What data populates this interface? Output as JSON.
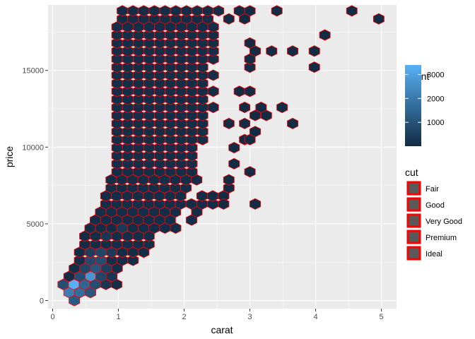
{
  "chart_data": {
    "type": "hexbin",
    "title": "",
    "xlabel": "carat",
    "ylabel": "price",
    "xlim": [
      -0.07,
      5.23
    ],
    "ylim": [
      -527,
      19267
    ],
    "xticks": [
      0,
      1,
      2,
      3,
      4,
      5
    ],
    "yticks": [
      0,
      5000,
      10000,
      15000
    ],
    "xtick_labels": [
      "0",
      "1",
      "2",
      "3",
      "4",
      "5"
    ],
    "ytick_labels": [
      "0",
      "5000",
      "10000",
      "15000"
    ],
    "grid": true,
    "hex": {
      "x_spacing": 0.1625,
      "y_spacing": 524.5,
      "outline_color": "#ff0000",
      "x_origin": 0.165,
      "y_origin": -25
    },
    "fill_scale": {
      "low_color": "#132b43",
      "high_color": "#56b1f7",
      "min": 1,
      "max": 3400
    },
    "rows": [
      {
        "y": 0,
        "x_from": 0.33,
        "x_to": 0.33,
        "counts": {
          "0.33": 1200
        }
      },
      {
        "y": 524,
        "x_from": 0.25,
        "x_to": 0.73,
        "counts": {
          "0.25": 2100,
          "0.41": 1700,
          "0.57": 1100,
          "0.73": 400
        }
      },
      {
        "y": 1049,
        "x_from": 0.16,
        "x_to": 0.98,
        "counts": {
          "0.16": 900,
          "0.33": 3400,
          "0.49": 1500,
          "0.65": 900,
          "0.81": 300
        }
      },
      {
        "y": 1573,
        "x_from": 0.25,
        "x_to": 1.06,
        "counts": {
          "0.41": 900,
          "0.57": 2700,
          "0.73": 700,
          "0.89": 300
        }
      },
      {
        "y": 2098,
        "x_from": 0.33,
        "x_to": 1.14,
        "counts": {
          "0.49": 700,
          "0.65": 1100,
          "0.81": 500
        }
      },
      {
        "y": 2622,
        "x_from": 0.41,
        "x_to": 1.3,
        "counts": {
          "0.57": 800,
          "0.73": 900
        }
      },
      {
        "y": 3147,
        "x_from": 0.41,
        "x_to": 1.46,
        "counts": {
          "0.57": 500,
          "0.73": 700,
          "0.89": 400
        }
      },
      {
        "y": 3671,
        "x_from": 0.49,
        "x_to": 1.54,
        "counts": {
          "0.73": 500,
          "0.89": 400,
          "1.05": 450
        }
      },
      {
        "y": 4196,
        "x_from": 0.49,
        "x_to": 1.62,
        "counts": {
          "0.81": 300,
          "1.06": 400
        }
      },
      {
        "y": 4720,
        "x_from": 0.57,
        "x_to": 2.03,
        "counts": {
          "1.05": 350
        }
      },
      {
        "y": 5245,
        "x_from": 0.65,
        "x_to": 2.27,
        "counts": {}
      },
      {
        "y": 5769,
        "x_from": 0.73,
        "x_to": 2.35,
        "counts": {}
      },
      {
        "y": 6294,
        "x_from": 0.81,
        "x_to": 2.51,
        "counts": {}
      },
      {
        "y": 6818,
        "x_from": 0.81,
        "x_to": 2.6,
        "counts": {}
      },
      {
        "y": 7343,
        "x_from": 0.89,
        "x_to": 2.35,
        "counts": {}
      },
      {
        "y": 7867,
        "x_from": 0.89,
        "x_to": 2.27,
        "counts": {}
      },
      {
        "y": 8392,
        "x_from": 0.98,
        "x_to": 2.19,
        "counts": {}
      },
      {
        "y": 8916,
        "x_from": 0.98,
        "x_to": 2.27,
        "counts": {}
      },
      {
        "y": 9441,
        "x_from": 0.98,
        "x_to": 2.19,
        "counts": {}
      },
      {
        "y": 9965,
        "x_from": 0.98,
        "x_to": 2.27,
        "counts": {}
      },
      {
        "y": 10490,
        "x_from": 0.98,
        "x_to": 2.35,
        "counts": {}
      },
      {
        "y": 11014,
        "x_from": 0.98,
        "x_to": 2.43,
        "counts": {}
      },
      {
        "y": 11539,
        "x_from": 0.98,
        "x_to": 2.35,
        "counts": {}
      },
      {
        "y": 12063,
        "x_from": 0.98,
        "x_to": 2.43,
        "counts": {}
      },
      {
        "y": 12588,
        "x_from": 0.98,
        "x_to": 2.51,
        "counts": {}
      },
      {
        "y": 13112,
        "x_from": 0.98,
        "x_to": 2.43,
        "counts": {}
      },
      {
        "y": 13637,
        "x_from": 0.98,
        "x_to": 2.51,
        "counts": {}
      },
      {
        "y": 14161,
        "x_from": 0.98,
        "x_to": 2.43,
        "counts": {}
      },
      {
        "y": 14686,
        "x_from": 0.98,
        "x_to": 2.51,
        "counts": {}
      },
      {
        "y": 15210,
        "x_from": 0.98,
        "x_to": 2.43,
        "counts": {}
      },
      {
        "y": 15735,
        "x_from": 0.98,
        "x_to": 2.6,
        "counts": {}
      },
      {
        "y": 16259,
        "x_from": 0.98,
        "x_to": 2.51,
        "counts": {}
      },
      {
        "y": 16784,
        "x_from": 0.98,
        "x_to": 2.6,
        "counts": {}
      },
      {
        "y": 17308,
        "x_from": 0.98,
        "x_to": 2.51,
        "counts": {}
      },
      {
        "y": 17833,
        "x_from": 0.98,
        "x_to": 2.6,
        "counts": {}
      },
      {
        "y": 18357,
        "x_from": 1.06,
        "x_to": 2.51,
        "counts": {}
      },
      {
        "y": 18882,
        "x_from": 1.06,
        "x_to": 2.6,
        "counts": {}
      }
    ],
    "holes": [
      [
        2.03,
        5769
      ],
      [
        1.95,
        5245
      ],
      [
        2.11,
        6818
      ],
      [
        2.19,
        7343
      ],
      [
        2.43,
        8916
      ],
      [
        2.35,
        9441
      ],
      [
        2.43,
        9965
      ],
      [
        2.51,
        16259
      ],
      [
        2.51,
        17308
      ],
      [
        2.51,
        15735
      ],
      [
        2.43,
        14686
      ],
      [
        2.35,
        14161
      ],
      [
        2.43,
        13637
      ],
      [
        2.27,
        13112
      ],
      [
        2.35,
        12588
      ],
      [
        2.19,
        11539
      ],
      [
        2.27,
        12063
      ]
    ],
    "extra_hexes": [
      [
        2.6,
        6818
      ],
      [
        2.6,
        6294
      ],
      [
        2.68,
        7343
      ],
      [
        2.68,
        7867
      ],
      [
        2.76,
        8916
      ],
      [
        2.76,
        9965
      ],
      [
        3.0,
        8392
      ],
      [
        3.08,
        6294
      ],
      [
        2.92,
        10490
      ],
      [
        3.0,
        10490
      ],
      [
        3.08,
        11014
      ],
      [
        2.92,
        11539
      ],
      [
        2.68,
        11539
      ],
      [
        3.08,
        12063
      ],
      [
        2.92,
        12588
      ],
      [
        3.25,
        12063
      ],
      [
        3.17,
        12588
      ],
      [
        3.49,
        12588
      ],
      [
        3.65,
        11539
      ],
      [
        2.84,
        13637
      ],
      [
        3.0,
        13637
      ],
      [
        3.0,
        15210
      ],
      [
        3.0,
        15735
      ],
      [
        3.08,
        16259
      ],
      [
        3.0,
        16784
      ],
      [
        2.92,
        18357
      ],
      [
        2.84,
        18882
      ],
      [
        3.0,
        18882
      ],
      [
        3.33,
        16259
      ],
      [
        3.65,
        16259
      ],
      [
        3.98,
        16259
      ],
      [
        3.98,
        15210
      ],
      [
        4.14,
        17308
      ],
      [
        3.41,
        18882
      ],
      [
        4.55,
        18882
      ],
      [
        4.96,
        18357
      ],
      [
        2.68,
        18357
      ]
    ],
    "legend_count": {
      "title": "count",
      "ticks": [
        1000,
        2000,
        3000
      ],
      "tick_labels": [
        "1000",
        "2000",
        "3000"
      ],
      "min": 1,
      "max": 3400
    },
    "legend_cut": {
      "title": "cut",
      "items": [
        "Fair",
        "Good",
        "Very Good",
        "Premium",
        "Ideal"
      ],
      "key_fill": "#595959",
      "key_outline": "#ff0000"
    }
  }
}
